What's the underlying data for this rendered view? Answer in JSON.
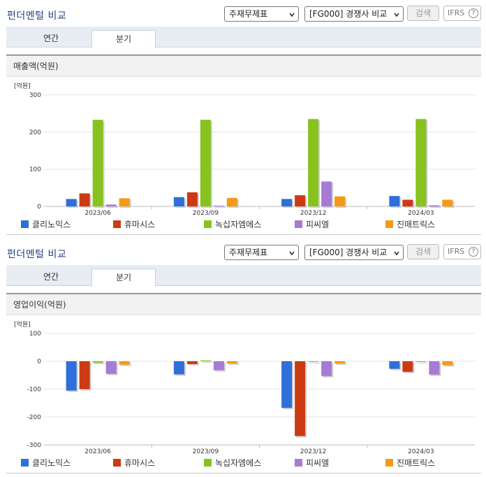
{
  "controls": {
    "title": "펀더멘털 비교",
    "statement_select": "주재무제표",
    "peer_select": "[FG000] 경쟁사 비교",
    "search_button": "검색",
    "ifrs_label": "IFRS",
    "help_symbol": "?",
    "tabs": [
      "연간",
      "분기"
    ],
    "active_tab": "분기"
  },
  "colors": {
    "clinomics": "#2e6fd9",
    "huemasys": "#cc3a14",
    "greencross_ms": "#88c21f",
    "pcl": "#a77ad6",
    "genmatrix": "#f59a16"
  },
  "chart_data": [
    {
      "type": "bar",
      "title": "매출액(억원)",
      "unit_label": "[억원]",
      "categories": [
        "2023/06",
        "2023/09",
        "2023/12",
        "2024/03"
      ],
      "yticks": [
        0,
        100,
        200,
        300
      ],
      "ylim": [
        0,
        300
      ],
      "grid": true,
      "legend_position": "bottom",
      "series": [
        {
          "name": "클리노믹스",
          "values": [
            20,
            25,
            20,
            28
          ]
        },
        {
          "name": "휴마시스",
          "values": [
            35,
            38,
            30,
            18
          ]
        },
        {
          "name": "녹십자엠에스",
          "values": [
            233,
            233,
            235,
            235
          ]
        },
        {
          "name": "피씨엘",
          "values": [
            5,
            2,
            67,
            3
          ]
        },
        {
          "name": "진매트릭스",
          "values": [
            22,
            23,
            27,
            18
          ]
        }
      ]
    },
    {
      "type": "bar",
      "title": "영업이익(억원)",
      "unit_label": "[억원]",
      "categories": [
        "2023/06",
        "2023/09",
        "2023/12",
        "2024/03"
      ],
      "yticks": [
        100,
        0,
        -100,
        -200,
        -300
      ],
      "ylim": [
        -300,
        100
      ],
      "grid": true,
      "legend_position": "bottom",
      "series": [
        {
          "name": "클리노믹스",
          "values": [
            -105,
            -47,
            -167,
            -27
          ]
        },
        {
          "name": "휴마시스",
          "values": [
            -100,
            -10,
            -268,
            -38
          ]
        },
        {
          "name": "녹십자엠에스",
          "values": [
            -5,
            3,
            -2,
            -2
          ]
        },
        {
          "name": "피씨엘",
          "values": [
            -45,
            -32,
            -53,
            -48
          ]
        },
        {
          "name": "진매트릭스",
          "values": [
            -12,
            -8,
            -8,
            -14
          ]
        }
      ]
    }
  ]
}
